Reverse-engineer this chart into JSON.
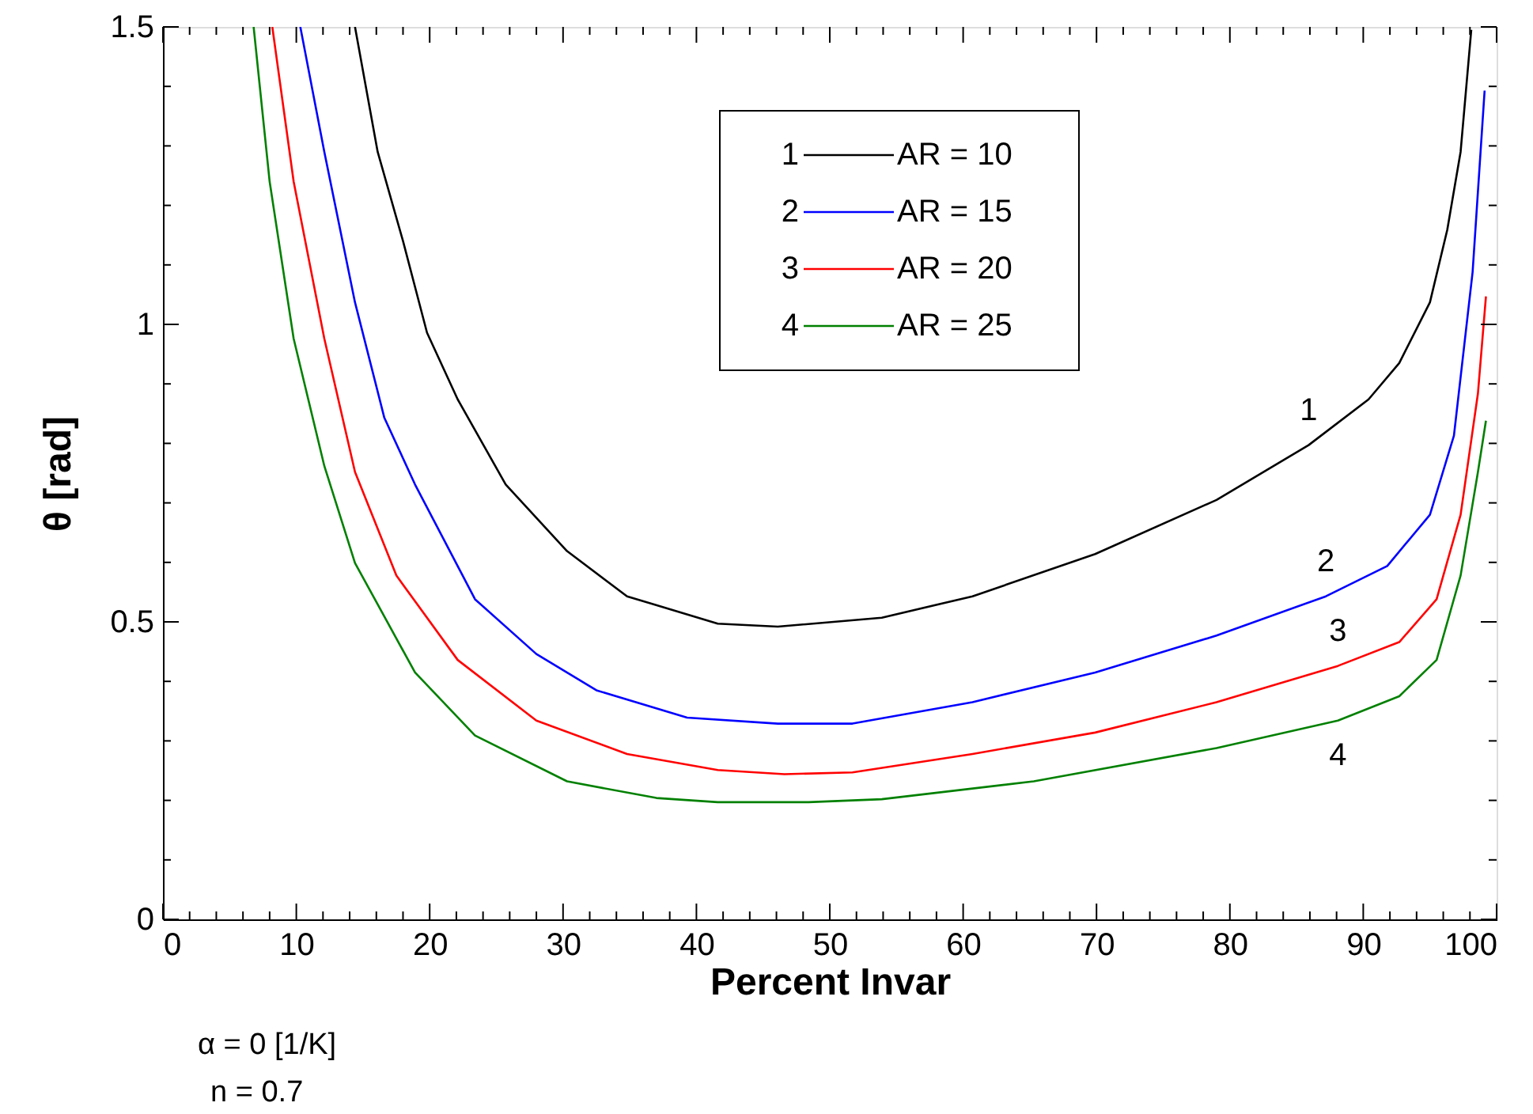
{
  "chart_data": {
    "type": "line",
    "xlabel": "Percent Invar",
    "ylabel": "θ  [rad]",
    "xlim": [
      0,
      100
    ],
    "ylim": [
      0,
      1.5
    ],
    "xticks": [
      0,
      {
        "value": 2,
        "label": null
      },
      {
        "value": 4,
        "label": null
      },
      {
        "value": 6,
        "label": null
      },
      {
        "value": 8,
        "label": null
      },
      10,
      {
        "value": 12,
        "label": null
      },
      {
        "value": 14,
        "label": null
      },
      {
        "value": 16,
        "label": null
      },
      {
        "value": 18,
        "label": null
      },
      20,
      {
        "value": 22,
        "label": null
      },
      {
        "value": 24,
        "label": null
      },
      {
        "value": 26,
        "label": null
      },
      {
        "value": 28,
        "label": null
      },
      30,
      {
        "value": 32,
        "label": null
      },
      {
        "value": 34,
        "label": null
      },
      {
        "value": 36,
        "label": null
      },
      {
        "value": 38,
        "label": null
      },
      40,
      {
        "value": 42,
        "label": null
      },
      {
        "value": 44,
        "label": null
      },
      {
        "value": 46,
        "label": null
      },
      {
        "value": 48,
        "label": null
      },
      50,
      {
        "value": 52,
        "label": null
      },
      {
        "value": 54,
        "label": null
      },
      {
        "value": 56,
        "label": null
      },
      {
        "value": 58,
        "label": null
      },
      60,
      {
        "value": 62,
        "label": null
      },
      {
        "value": 64,
        "label": null
      },
      {
        "value": 66,
        "label": null
      },
      {
        "value": 68,
        "label": null
      },
      70,
      {
        "value": 72,
        "label": null
      },
      {
        "value": 74,
        "label": null
      },
      {
        "value": 76,
        "label": null
      },
      {
        "value": 78,
        "label": null
      },
      80,
      {
        "value": 82,
        "label": null
      },
      {
        "value": 84,
        "label": null
      },
      {
        "value": 86,
        "label": null
      },
      {
        "value": 88,
        "label": null
      },
      90,
      {
        "value": 92,
        "label": null
      },
      {
        "value": 94,
        "label": null
      },
      {
        "value": 96,
        "label": null
      },
      {
        "value": 98,
        "label": null
      },
      100
    ],
    "yticks": [
      0,
      {
        "value": 0.1,
        "label": null
      },
      {
        "value": 0.2,
        "label": null
      },
      {
        "value": 0.3,
        "label": null
      },
      {
        "value": 0.4,
        "label": null
      },
      0.5,
      {
        "value": 0.6,
        "label": null
      },
      {
        "value": 0.7,
        "label": null
      },
      {
        "value": 0.8,
        "label": null
      },
      {
        "value": 0.9,
        "label": null
      },
      1,
      {
        "value": 1.1,
        "label": null
      },
      {
        "value": 1.2,
        "label": null
      },
      {
        "value": 1.3,
        "label": null
      },
      {
        "value": 1.4,
        "label": null
      },
      1.5
    ],
    "grid": false,
    "legend": "top",
    "marker": "none",
    "line_style": "solid",
    "series": [
      {
        "name": "AR = 10",
        "color": "#000000",
        "x": [
          14.4,
          16.1,
          18.0,
          19.8,
          22.1,
          25.7,
          30.3,
          34.8,
          41.6,
          46.1,
          53.9,
          60.7,
          69.9,
          79.0,
          85.9,
          90.4,
          92.7,
          95.0,
          96.3,
          97.3,
          98.1
        ],
        "values": [
          1.5,
          1.29,
          1.14,
          0.986,
          0.874,
          0.731,
          0.619,
          0.543,
          0.497,
          0.492,
          0.507,
          0.543,
          0.614,
          0.705,
          0.797,
          0.874,
          0.935,
          1.037,
          1.159,
          1.29,
          1.495
        ]
      },
      {
        "name": "AR = 15",
        "color": "#0000ff",
        "x": [
          10.3,
          12.1,
          14.4,
          16.6,
          18.9,
          23.4,
          28.0,
          32.5,
          39.3,
          46.1,
          51.7,
          60.7,
          69.9,
          79.0,
          87.2,
          91.8,
          95.0,
          96.8,
          98.2,
          99.1
        ],
        "values": [
          1.5,
          1.29,
          1.037,
          0.843,
          0.731,
          0.538,
          0.446,
          0.385,
          0.339,
          0.329,
          0.329,
          0.365,
          0.415,
          0.477,
          0.543,
          0.594,
          0.68,
          0.813,
          1.088,
          1.393
        ]
      },
      {
        "name": "AR = 20",
        "color": "#ff0000",
        "x": [
          8.2,
          9.8,
          12.1,
          14.4,
          17.5,
          22.1,
          28.0,
          34.8,
          41.6,
          46.6,
          51.7,
          60.7,
          69.9,
          79.0,
          88.1,
          92.7,
          95.5,
          97.3,
          98.6,
          99.2
        ],
        "values": [
          1.5,
          1.24,
          0.976,
          0.752,
          0.578,
          0.436,
          0.334,
          0.278,
          0.251,
          0.244,
          0.247,
          0.278,
          0.314,
          0.365,
          0.426,
          0.466,
          0.538,
          0.68,
          0.884,
          1.047
        ]
      },
      {
        "name": "AR = 25",
        "color": "#008000",
        "x": [
          6.8,
          8.0,
          9.8,
          12.1,
          14.4,
          18.9,
          23.4,
          30.3,
          37.0,
          41.6,
          48.4,
          53.9,
          65.3,
          79.0,
          88.1,
          92.7,
          95.5,
          97.3,
          98.6,
          99.2
        ],
        "values": [
          1.5,
          1.24,
          0.976,
          0.762,
          0.599,
          0.415,
          0.309,
          0.232,
          0.204,
          0.197,
          0.197,
          0.202,
          0.232,
          0.288,
          0.334,
          0.375,
          0.436,
          0.578,
          0.752,
          0.838
        ]
      }
    ],
    "annotations": [
      {
        "text": "1",
        "x": 85.9,
        "y": 0.797
      },
      {
        "text": "2",
        "x": 87.2,
        "y": 0.543
      },
      {
        "text": "3",
        "x": 88.1,
        "y": 0.426
      },
      {
        "text": "4",
        "x": 88.1,
        "y": 0.334
      },
      "α = 0 [1/K]",
      "n = 0.7"
    ]
  }
}
